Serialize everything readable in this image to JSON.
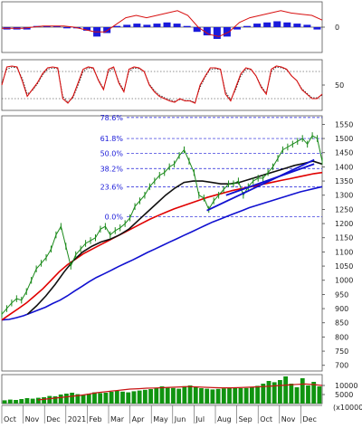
{
  "chart_data": [
    {
      "type": "line",
      "panel": "macd",
      "yticks": [
        0
      ],
      "ylim": [
        -1,
        1
      ],
      "series": [],
      "histogram": [
        -0.1,
        -0.1,
        -0.1,
        0.05,
        0.05,
        0.05,
        -0.05,
        -0.05,
        -0.15,
        -0.4,
        -0.25,
        0.05,
        0.1,
        0.15,
        0.1,
        0.15,
        0.2,
        0.15,
        0.05,
        -0.2,
        -0.35,
        -0.5,
        -0.4,
        -0.1,
        0.05,
        0.15,
        0.2,
        0.25,
        0.2,
        0.15,
        0.1,
        -0.1
      ],
      "signal": [
        -0.05,
        -0.05,
        -0.05,
        0.0,
        0.05,
        0.05,
        0.05,
        0.0,
        -0.1,
        -0.2,
        -0.2,
        0.1,
        0.4,
        0.5,
        0.4,
        0.5,
        0.6,
        0.7,
        0.5,
        0.0,
        -0.3,
        -0.4,
        -0.2,
        0.2,
        0.4,
        0.5,
        0.6,
        0.7,
        0.6,
        0.55,
        0.5,
        0.3
      ]
    },
    {
      "type": "line",
      "panel": "stochastic",
      "yticks": [
        50
      ],
      "ylim": [
        0,
        100
      ],
      "k": [
        50,
        90,
        92,
        90,
        60,
        25,
        40,
        55,
        75,
        88,
        90,
        88,
        20,
        10,
        25,
        55,
        85,
        90,
        88,
        60,
        40,
        85,
        90,
        55,
        35,
        85,
        90,
        88,
        80,
        50,
        35,
        25,
        20,
        15,
        12,
        20,
        15,
        15,
        10,
        50,
        70,
        88,
        88,
        85,
        30,
        15,
        45,
        75,
        88,
        85,
        70,
        45,
        30,
        85,
        92,
        90,
        85,
        70,
        60,
        40,
        30,
        20,
        20,
        30
      ],
      "d": [
        55,
        85,
        90,
        88,
        65,
        30,
        38,
        52,
        72,
        85,
        88,
        86,
        25,
        12,
        22,
        50,
        80,
        88,
        86,
        62,
        42,
        80,
        88,
        58,
        38,
        80,
        88,
        86,
        80,
        52,
        38,
        28,
        22,
        18,
        14,
        18,
        16,
        16,
        12,
        45,
        68,
        85,
        86,
        84,
        35,
        18,
        40,
        70,
        85,
        84,
        70,
        48,
        32,
        80,
        90,
        88,
        84,
        70,
        60,
        42,
        32,
        22,
        22,
        28
      ]
    },
    {
      "type": "line",
      "panel": "price",
      "yticks": [
        700,
        750,
        800,
        850,
        900,
        950,
        1000,
        1050,
        1100,
        1150,
        1200,
        1250,
        1300,
        1350,
        1400,
        1450,
        1500,
        1550
      ],
      "ylim": [
        680,
        1580
      ],
      "fibonacci": [
        {
          "label": "78.6%",
          "value": 1574
        },
        {
          "label": "61.8%",
          "value": 1500
        },
        {
          "label": "50.0%",
          "value": 1447
        },
        {
          "label": "38.2%",
          "value": 1394
        },
        {
          "label": "23.6%",
          "value": 1329
        },
        {
          "label": "0.0%",
          "value": 1224
        }
      ],
      "price": [
        880,
        900,
        920,
        935,
        930,
        960,
        1000,
        1040,
        1060,
        1080,
        1110,
        1160,
        1190,
        1120,
        1050,
        1090,
        1110,
        1130,
        1140,
        1150,
        1180,
        1190,
        1160,
        1175,
        1185,
        1200,
        1220,
        1260,
        1280,
        1300,
        1330,
        1350,
        1370,
        1380,
        1400,
        1410,
        1440,
        1460,
        1420,
        1380,
        1300,
        1290,
        1250,
        1280,
        1300,
        1320,
        1340,
        1340,
        1350,
        1300,
        1330,
        1350,
        1360,
        1360,
        1380,
        1400,
        1430,
        1460,
        1470,
        1480,
        1490,
        1500,
        1480,
        1510,
        1500,
        1420
      ],
      "series": [
        {
          "values": [
            860,
            862,
            868,
            875,
            885,
            895,
            905,
            918,
            930,
            945,
            962,
            978,
            995,
            1010,
            1022,
            1035,
            1048,
            1060,
            1072,
            1085,
            1098,
            1110,
            1122,
            1134,
            1146,
            1158,
            1170,
            1182,
            1194,
            1206,
            1216,
            1226,
            1236,
            1246,
            1256,
            1264,
            1272,
            1280,
            1288,
            1296,
            1304,
            1312,
            1318,
            1324,
            1330
          ]
        },
        {
          "values": [
            860,
            880,
            900,
            920,
            945,
            970,
            1000,
            1030,
            1055,
            1075,
            1095,
            1110,
            1125,
            1140,
            1155,
            1170,
            1185,
            1200,
            1215,
            1228,
            1240,
            1252,
            1262,
            1272,
            1282,
            1292,
            1300,
            1308,
            1316,
            1322,
            1328,
            1334,
            1340,
            1346,
            1352,
            1358,
            1364,
            1370,
            1376,
            1380
          ]
        },
        {
          "values": [
            880,
            910,
            945,
            985,
            1030,
            1070,
            1100,
            1120,
            1135,
            1145,
            1160,
            1180,
            1210,
            1240,
            1270,
            1300,
            1325,
            1345,
            1350,
            1350,
            1345,
            1340,
            1340,
            1345,
            1355,
            1365,
            1375,
            1385,
            1395,
            1405,
            1412,
            1420,
            1410
          ]
        }
      ],
      "trendlines": [
        {
          "from": [
            0.64,
            1246
          ],
          "to": [
            0.975,
            1425
          ]
        },
        {
          "from": [
            0.7,
            1300
          ],
          "to": [
            0.975,
            1410
          ]
        }
      ]
    },
    {
      "type": "bar",
      "panel": "volume",
      "yticks": [
        10000,
        5000
      ],
      "ylim": [
        0,
        16000
      ],
      "unit_label": "(x10000)",
      "values": [
        1800,
        2200,
        2000,
        2500,
        3000,
        2700,
        3200,
        3500,
        4200,
        4000,
        5000,
        5500,
        6000,
        5200,
        4800,
        5500,
        6200,
        5800,
        6000,
        6500,
        7000,
        6600,
        6200,
        6800,
        7200,
        7600,
        8000,
        8800,
        9500,
        9000,
        8600,
        8200,
        9600,
        10000,
        9000,
        8500,
        8200,
        7800,
        8100,
        8400,
        8800,
        9000,
        8500,
        8600,
        9200,
        9800,
        11000,
        12500,
        11800,
        13000,
        15000,
        11000,
        9000,
        14000,
        10000,
        12000,
        9500
      ],
      "ma_values": [
        2000,
        2500,
        3000,
        3500,
        4000,
        4500,
        5200,
        6000,
        6500,
        7000,
        7500,
        8000,
        8200,
        8500,
        8600,
        8800,
        9000,
        9200,
        9400,
        9200,
        9000,
        8800,
        8700,
        8700,
        8800,
        9000,
        9200,
        9400,
        9700,
        10000,
        10300,
        10600,
        10800,
        10500,
        10000
      ]
    }
  ],
  "x_axis": {
    "labels": [
      "Oct",
      "Nov",
      "Dec",
      "2021",
      "Feb",
      "Mar",
      "Apr",
      "May",
      "Jun",
      "Jul",
      "Aug",
      "Sep",
      "Oct",
      "Nov",
      "Dec"
    ]
  },
  "colors": {
    "price_line": "#1b8a1b",
    "ma_short": "#111111",
    "ma_mid": "#e00000",
    "ma_long": "#1010d0",
    "fib": "#1a1ad8",
    "macd_hist": "#1a1adb",
    "indicator_line": "#d81010",
    "volume_bar": "#109410",
    "volume_ma": "#c81414"
  }
}
